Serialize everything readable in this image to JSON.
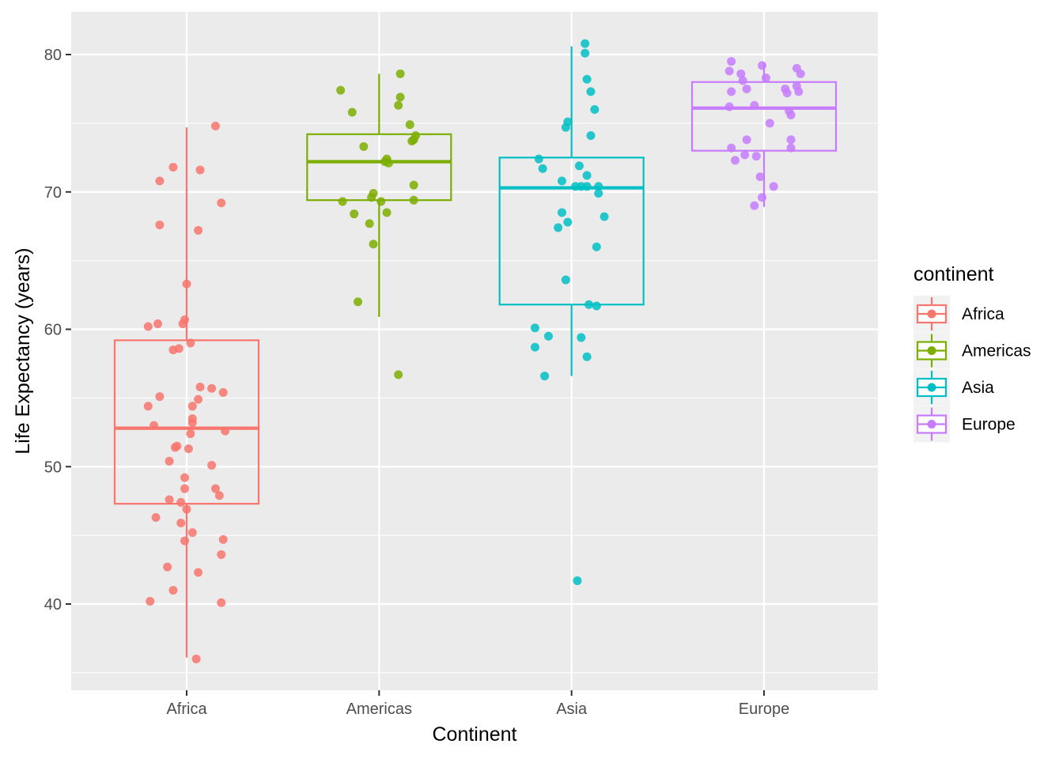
{
  "chart_data": {
    "type": "boxplot",
    "xlabel": "Continent",
    "ylabel": "Life Expectancy (years)",
    "ylim": [
      34,
      83.5
    ],
    "yticks": [
      40,
      50,
      60,
      70,
      80
    ],
    "ytick_labels": [
      "40",
      "50",
      "60",
      "70",
      "80"
    ],
    "grid": true,
    "legend": {
      "title": "continent",
      "position": "right"
    },
    "categories": [
      "Africa",
      "Americas",
      "Asia",
      "Europe"
    ],
    "series": [
      {
        "name": "Africa",
        "color": "#F8766D",
        "box": {
          "min": 36.1,
          "q1": 47.3,
          "median": 52.8,
          "q3": 59.2,
          "max": 74.7
        },
        "points": [
          [
            -0.2,
            60.2
          ],
          [
            -0.15,
            60.4
          ],
          [
            -0.02,
            60.4
          ],
          [
            -0.01,
            60.7
          ],
          [
            0.0,
            63.3
          ],
          [
            0.18,
            69.2
          ],
          [
            -0.14,
            70.8
          ],
          [
            -0.07,
            71.8
          ],
          [
            0.07,
            71.6
          ],
          [
            0.15,
            74.8
          ],
          [
            -0.14,
            67.6
          ],
          [
            0.06,
            67.2
          ],
          [
            -0.07,
            58.5
          ],
          [
            -0.04,
            58.6
          ],
          [
            0.02,
            59.0
          ],
          [
            0.07,
            55.8
          ],
          [
            0.13,
            55.7
          ],
          [
            0.19,
            55.4
          ],
          [
            -0.14,
            55.1
          ],
          [
            0.06,
            54.9
          ],
          [
            -0.2,
            54.4
          ],
          [
            0.03,
            54.4
          ],
          [
            0.03,
            53.5
          ],
          [
            0.03,
            53.2
          ],
          [
            0.02,
            52.4
          ],
          [
            0.2,
            52.6
          ],
          [
            -0.17,
            53.0
          ],
          [
            -0.06,
            51.4
          ],
          [
            -0.05,
            51.5
          ],
          [
            0.01,
            51.3
          ],
          [
            -0.09,
            50.4
          ],
          [
            0.13,
            50.1
          ],
          [
            -0.01,
            49.2
          ],
          [
            -0.01,
            48.4
          ],
          [
            0.15,
            48.4
          ],
          [
            0.17,
            47.9
          ],
          [
            -0.09,
            47.6
          ],
          [
            -0.03,
            47.4
          ],
          [
            0.0,
            46.9
          ],
          [
            -0.16,
            46.3
          ],
          [
            -0.03,
            45.9
          ],
          [
            0.03,
            45.2
          ],
          [
            0.19,
            44.7
          ],
          [
            -0.01,
            44.6
          ],
          [
            0.18,
            43.6
          ],
          [
            -0.1,
            42.7
          ],
          [
            0.06,
            42.3
          ],
          [
            -0.07,
            41.0
          ],
          [
            -0.19,
            40.2
          ],
          [
            0.18,
            40.1
          ],
          [
            0.05,
            36.0
          ]
        ]
      },
      {
        "name": "Americas",
        "color": "#7CAE00",
        "box": {
          "min": 60.9,
          "q1": 69.4,
          "median": 72.2,
          "q3": 74.2,
          "max": 78.6
        },
        "points": [
          [
            -0.2,
            77.4
          ],
          [
            -0.14,
            75.8
          ],
          [
            0.11,
            78.6
          ],
          [
            0.11,
            76.9
          ],
          [
            0.1,
            76.3
          ],
          [
            0.16,
            74.9
          ],
          [
            0.19,
            74.1
          ],
          [
            0.18,
            73.8
          ],
          [
            0.17,
            73.7
          ],
          [
            -0.08,
            73.3
          ],
          [
            0.04,
            72.4
          ],
          [
            0.03,
            72.2
          ],
          [
            0.05,
            72.1
          ],
          [
            0.18,
            70.5
          ],
          [
            -0.03,
            69.9
          ],
          [
            -0.04,
            69.6
          ],
          [
            -0.19,
            69.3
          ],
          [
            0.01,
            69.3
          ],
          [
            0.18,
            69.4
          ],
          [
            -0.13,
            68.4
          ],
          [
            0.04,
            68.5
          ],
          [
            -0.05,
            67.7
          ],
          [
            -0.03,
            66.2
          ],
          [
            -0.11,
            62.0
          ],
          [
            0.1,
            56.7
          ]
        ]
      },
      {
        "name": "Asia",
        "color": "#00BFC4",
        "box": {
          "min": 56.6,
          "q1": 61.8,
          "median": 70.3,
          "q3": 72.5,
          "max": 80.6
        },
        "points": [
          [
            0.07,
            80.8
          ],
          [
            0.07,
            80.1
          ],
          [
            0.08,
            78.2
          ],
          [
            0.1,
            77.3
          ],
          [
            0.12,
            76.0
          ],
          [
            -0.02,
            75.1
          ],
          [
            -0.03,
            74.7
          ],
          [
            0.1,
            74.1
          ],
          [
            -0.17,
            72.4
          ],
          [
            -0.15,
            71.7
          ],
          [
            0.04,
            71.9
          ],
          [
            0.08,
            71.2
          ],
          [
            -0.05,
            70.8
          ],
          [
            0.02,
            70.4
          ],
          [
            0.05,
            70.4
          ],
          [
            0.08,
            70.4
          ],
          [
            0.14,
            70.4
          ],
          [
            0.14,
            69.9
          ],
          [
            -0.05,
            68.5
          ],
          [
            0.17,
            68.2
          ],
          [
            -0.02,
            67.8
          ],
          [
            -0.07,
            67.4
          ],
          [
            0.13,
            66.0
          ],
          [
            -0.03,
            63.6
          ],
          [
            0.09,
            61.8
          ],
          [
            0.13,
            61.7
          ],
          [
            -0.19,
            60.1
          ],
          [
            -0.12,
            59.5
          ],
          [
            0.05,
            59.4
          ],
          [
            -0.19,
            58.7
          ],
          [
            0.08,
            58.0
          ],
          [
            -0.14,
            56.6
          ],
          [
            0.03,
            41.7
          ]
        ]
      },
      {
        "name": "Europe",
        "color": "#C77CFF",
        "box": {
          "min": 68.9,
          "q1": 73.0,
          "median": 76.1,
          "q3": 78.0,
          "max": 79.4
        },
        "points": [
          [
            -0.17,
            79.5
          ],
          [
            -0.01,
            79.2
          ],
          [
            0.17,
            79.0
          ],
          [
            -0.18,
            78.8
          ],
          [
            -0.12,
            78.6
          ],
          [
            0.19,
            78.6
          ],
          [
            0.01,
            78.3
          ],
          [
            -0.11,
            78.1
          ],
          [
            -0.09,
            77.5
          ],
          [
            0.11,
            77.5
          ],
          [
            0.17,
            77.7
          ],
          [
            0.18,
            77.3
          ],
          [
            -0.17,
            77.3
          ],
          [
            0.12,
            77.2
          ],
          [
            -0.18,
            76.2
          ],
          [
            -0.05,
            76.3
          ],
          [
            0.13,
            75.9
          ],
          [
            0.14,
            75.6
          ],
          [
            0.03,
            75.0
          ],
          [
            -0.09,
            73.8
          ],
          [
            0.14,
            73.8
          ],
          [
            -0.17,
            73.2
          ],
          [
            0.14,
            73.2
          ],
          [
            -0.1,
            72.7
          ],
          [
            -0.15,
            72.3
          ],
          [
            -0.04,
            72.6
          ],
          [
            -0.02,
            71.1
          ],
          [
            0.05,
            70.4
          ],
          [
            -0.01,
            69.6
          ],
          [
            -0.05,
            69.0
          ]
        ]
      }
    ]
  }
}
